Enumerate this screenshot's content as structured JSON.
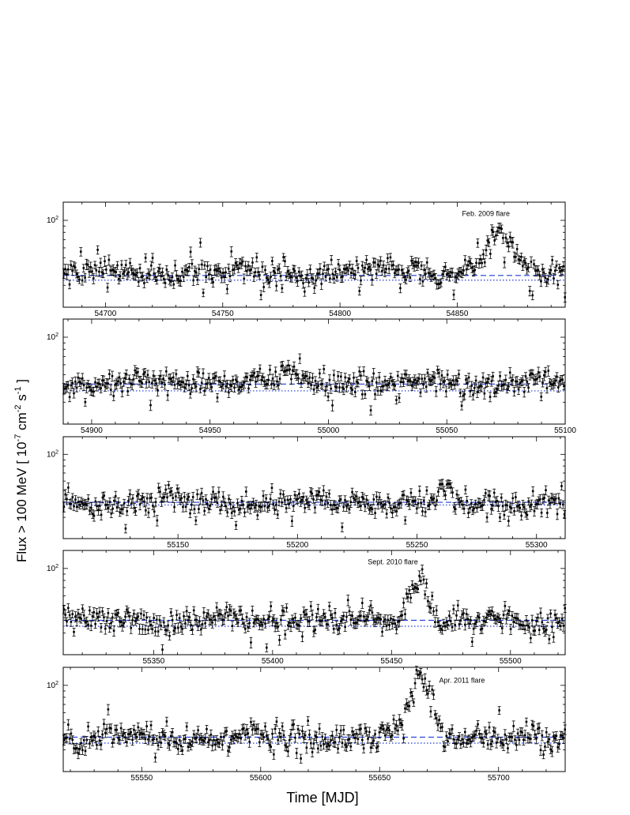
{
  "figure": {
    "ylabel_main": "Flux > 100 MeV [ 10",
    "ylabel_exp1": "-7",
    "ylabel_mid": " cm",
    "ylabel_exp2": "-2",
    "ylabel_mid2": " s",
    "ylabel_exp3": "-1",
    "ylabel_end": " ]",
    "xlabel": "Time [MJD]"
  },
  "colors": {
    "reference_lines": "#1f3bd6",
    "points": "#000000"
  },
  "chart_data": [
    {
      "type": "scatter",
      "panel": 1,
      "xlim": [
        54682,
        54896
      ],
      "y_scale": "log",
      "ylim": [
        20,
        140
      ],
      "y_ticks": [
        100
      ],
      "y_tick_labels": [
        "10^2"
      ],
      "x_ticks": [
        54700,
        54750,
        54800,
        54850
      ],
      "x_tick_labels": [
        "54700",
        "54750",
        "54800",
        "54850"
      ],
      "annotation": "Feb. 2009 flare",
      "annotation_x": 54852,
      "annotation_y": 108,
      "ref_dashed": 36,
      "ref_dotted": 33,
      "baseline": 38,
      "flares": [
        {
          "center": 54868,
          "width": 5,
          "peak": 72
        }
      ]
    },
    {
      "type": "scatter",
      "panel": 2,
      "xlim": [
        54888,
        55100
      ],
      "y_scale": "log",
      "ylim": [
        20,
        140
      ],
      "y_ticks": [
        100
      ],
      "y_tick_labels": [
        "10^2"
      ],
      "x_ticks": [
        54900,
        54950,
        55000,
        55050,
        55100
      ],
      "x_tick_labels": [
        "54900",
        "54950",
        "55000",
        "55050",
        "55100"
      ],
      "annotation": "",
      "ref_dashed": 42,
      "ref_dotted": 37,
      "baseline": 43,
      "flares": [
        {
          "center": 54983,
          "width": 4,
          "peak": 52
        }
      ]
    },
    {
      "type": "scatter",
      "panel": 3,
      "xlim": [
        55102,
        55312
      ],
      "y_scale": "log",
      "ylim": [
        20,
        140
      ],
      "y_ticks": [
        100
      ],
      "y_tick_labels": [
        "10^2"
      ],
      "x_ticks": [
        55150,
        55200,
        55250,
        55300
      ],
      "x_tick_labels": [
        "55150",
        "55200",
        "55250",
        "55300"
      ],
      "annotation": "",
      "ref_dashed": 40,
      "ref_dotted": 38,
      "baseline": 40,
      "flares": [
        {
          "center": 55262,
          "width": 2,
          "peak": 58
        }
      ]
    },
    {
      "type": "scatter",
      "panel": 4,
      "xlim": [
        55312,
        55523
      ],
      "y_scale": "log",
      "ylim": [
        20,
        140
      ],
      "y_ticks": [
        100
      ],
      "y_tick_labels": [
        "10^2"
      ],
      "x_ticks": [
        55350,
        55400,
        55450,
        55500
      ],
      "x_tick_labels": [
        "55350",
        "55400",
        "55450",
        "55500"
      ],
      "annotation": "Sept. 2010 flare",
      "annotation_x": 55440,
      "annotation_y": 108,
      "ref_dashed": 38,
      "ref_dotted": 34,
      "baseline": 38,
      "flares": [
        {
          "center": 55462,
          "width": 3.5,
          "peak": 82
        }
      ]
    },
    {
      "type": "scatter",
      "panel": 5,
      "xlim": [
        55517,
        55728
      ],
      "y_scale": "log",
      "ylim": [
        20,
        140
      ],
      "y_ticks": [
        100
      ],
      "y_tick_labels": [
        "10^2"
      ],
      "x_ticks": [
        55550,
        55600,
        55650,
        55700
      ],
      "x_tick_labels": [
        "55550",
        "55600",
        "55650",
        "55700"
      ],
      "annotation": "Apr. 2011 flare",
      "annotation_x": 55675,
      "annotation_y": 105,
      "ref_dashed": 38,
      "ref_dotted": 34,
      "baseline": 38,
      "flares": [
        {
          "center": 55667,
          "width": 4,
          "peak": 122
        }
      ]
    }
  ]
}
